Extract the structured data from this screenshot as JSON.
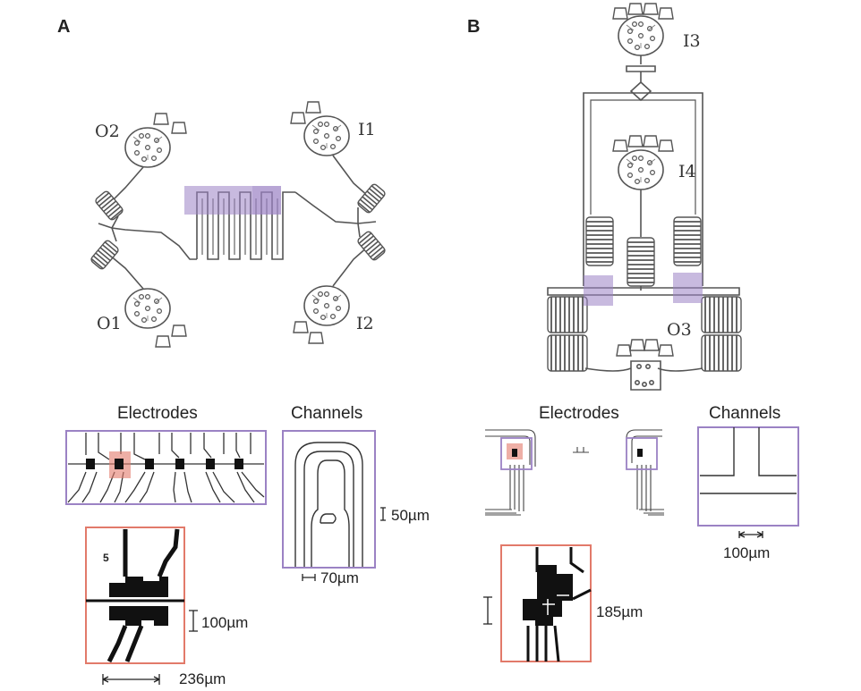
{
  "panel_a": {
    "letter": "A",
    "ports": {
      "o2": "O2",
      "o1": "O1",
      "i1": "I1",
      "i2": "I2"
    },
    "insets": {
      "electrodes_title": "Electrodes",
      "channels_title": "Channels",
      "electrode_number": "5",
      "scale_100": "100µm",
      "scale_236": "236µm",
      "scale_50": "50µm",
      "scale_70": "70µm"
    }
  },
  "panel_b": {
    "letter": "B",
    "ports": {
      "i3": "I3",
      "i4": "I4",
      "o3": "O3"
    },
    "insets": {
      "electrodes_title": "Electrodes",
      "channels_title": "Channels",
      "scale_185": "185µm",
      "scale_100": "100µm"
    }
  },
  "colors": {
    "channel": "#555555",
    "fill": "#888888",
    "purple": "#9b82c4",
    "red": "#e27a6a"
  }
}
